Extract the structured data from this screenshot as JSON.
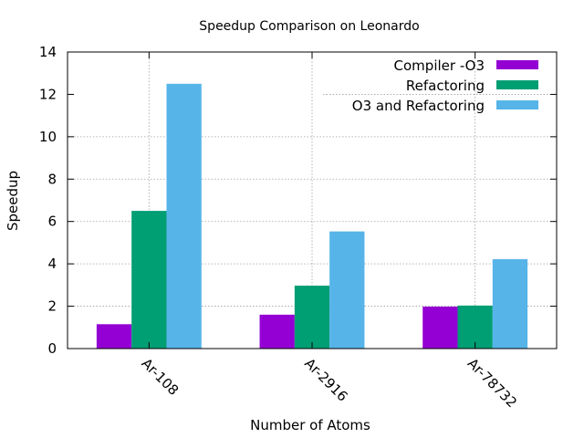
{
  "chart_data": {
    "type": "bar",
    "title": "Speedup Comparison on Leonardo",
    "xlabel": "Number of Atoms",
    "ylabel": "Speedup",
    "ylim": [
      0,
      14
    ],
    "yticks": [
      0,
      2,
      4,
      6,
      8,
      10,
      12,
      14
    ],
    "grid": true,
    "legend_position": "top-right",
    "categories": [
      "Ar-108",
      "Ar-2916",
      "Ar-78732"
    ],
    "series": [
      {
        "name": "Compiler -O3",
        "color": "#9400d3",
        "values": [
          1.15,
          1.6,
          1.98
        ]
      },
      {
        "name": "Refactoring",
        "color": "#009e73",
        "values": [
          6.5,
          2.97,
          2.03
        ]
      },
      {
        "name": "O3 and Refactoring",
        "color": "#56b4e9",
        "values": [
          12.5,
          5.53,
          4.22
        ]
      }
    ]
  }
}
